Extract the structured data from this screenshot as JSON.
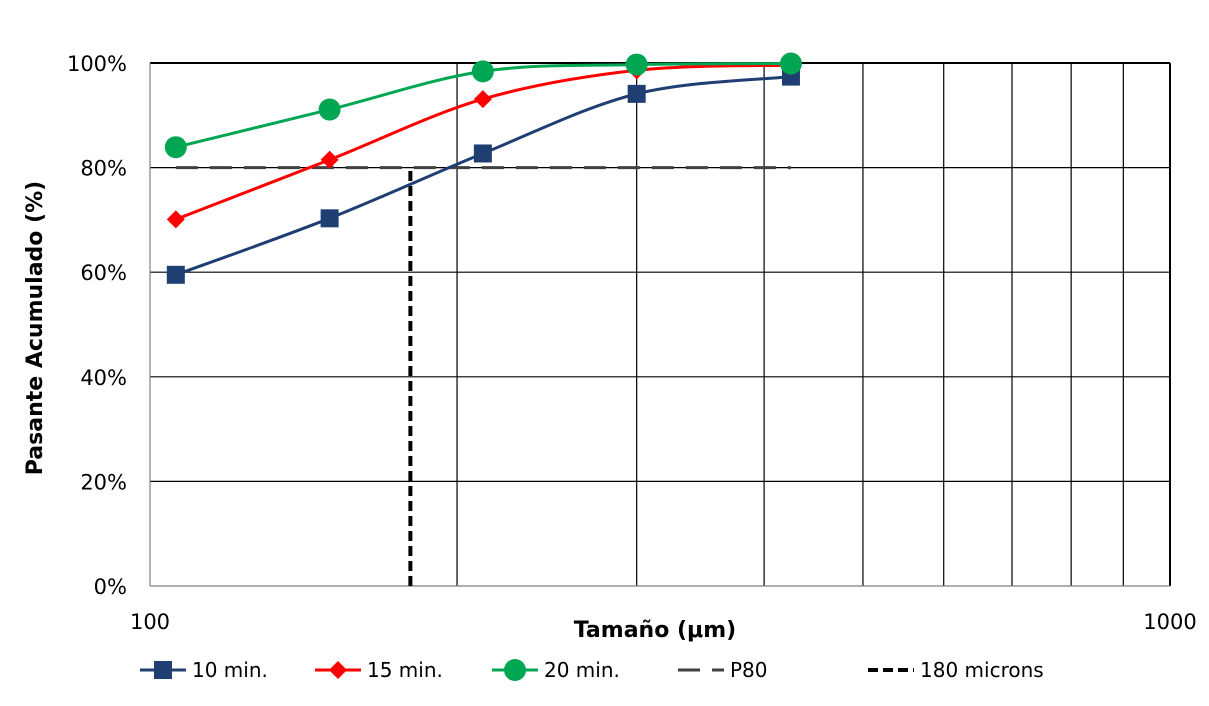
{
  "chart_data": {
    "type": "line",
    "xlabel": "Tamaño (μm)",
    "ylabel": "Pasante Acumulado (%)",
    "x_scale": "log",
    "xlim": [
      100,
      1000
    ],
    "ylim": [
      0,
      100
    ],
    "x_tick_labels": [
      "100",
      "1000"
    ],
    "y_tick_labels": [
      "0%",
      "20%",
      "40%",
      "60%",
      "80%",
      "100%"
    ],
    "grid": true,
    "legend_position": "bottom",
    "x": [
      106,
      150,
      212,
      300,
      425
    ],
    "series": [
      {
        "name": "10 min.",
        "values": [
          59.5,
          70.3,
          82.7,
          94.1,
          97.4
        ],
        "color": "#1f3f73",
        "marker": "square"
      },
      {
        "name": "15 min.",
        "values": [
          70.1,
          81.5,
          93.1,
          98.6,
          99.6
        ],
        "color": "#ff0000",
        "marker": "diamond"
      },
      {
        "name": "20 min.",
        "values": [
          83.9,
          91.1,
          98.4,
          99.7,
          99.9
        ],
        "color": "#00a651",
        "marker": "circle"
      }
    ],
    "reference_lines": [
      {
        "name": "P80",
        "x": [
          106,
          425
        ],
        "values": [
          80,
          80
        ],
        "color": "#404040",
        "style": "long-dash"
      },
      {
        "name": "180 microns",
        "x": [
          180,
          180
        ],
        "values": [
          0,
          80
        ],
        "color": "#000000",
        "style": "short-dash"
      }
    ]
  }
}
